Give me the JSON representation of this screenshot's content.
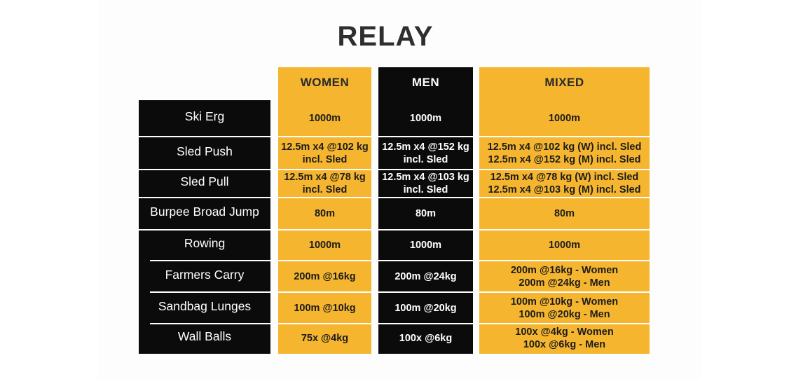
{
  "title": "RELAY",
  "headers": {
    "women": "WOMEN",
    "men": "MEN",
    "mixed": "MIXED"
  },
  "rows": [
    {
      "exercise": "Ski Erg",
      "women": [
        "1000m"
      ],
      "men": [
        "1000m"
      ],
      "mixed": [
        "1000m"
      ]
    },
    {
      "exercise": "Sled Push",
      "women": [
        "12.5m x4 @102 kg",
        "incl. Sled"
      ],
      "men": [
        "12.5m x4 @152 kg",
        "incl. Sled"
      ],
      "mixed": [
        "12.5m x4 @102 kg (W) incl. Sled",
        "12.5m x4 @152 kg (M) incl. Sled"
      ]
    },
    {
      "exercise": "Sled Pull",
      "women": [
        "12.5m x4 @78 kg",
        "incl. Sled"
      ],
      "men": [
        "12.5m x4 @103 kg",
        "incl. Sled"
      ],
      "mixed": [
        "12.5m x4 @78 kg (W) incl. Sled",
        "12.5m x4 @103 kg (M) incl. Sled"
      ]
    },
    {
      "exercise": "Burpee Broad Jump",
      "women": [
        "80m"
      ],
      "men": [
        "80m"
      ],
      "mixed": [
        "80m"
      ]
    },
    {
      "exercise": "Rowing",
      "women": [
        "1000m"
      ],
      "men": [
        "1000m"
      ],
      "mixed": [
        "1000m"
      ]
    },
    {
      "exercise": "Farmers Carry",
      "women": [
        "200m @16kg"
      ],
      "men": [
        "200m @24kg"
      ],
      "mixed": [
        "200m @16kg - Women",
        "200m @24kg - Men"
      ]
    },
    {
      "exercise": "Sandbag Lunges",
      "women": [
        "100m @10kg"
      ],
      "men": [
        "100m @20kg"
      ],
      "mixed": [
        "100m @10kg - Women",
        "100m @20kg - Men"
      ]
    },
    {
      "exercise": "Wall Balls",
      "women": [
        "75x @4kg"
      ],
      "men": [
        "100x @6kg"
      ],
      "mixed": [
        "100x @4kg - Women",
        "100x @6kg - Men"
      ]
    }
  ],
  "colors": {
    "yellow": "#f5b52f",
    "black": "#0b0b0b",
    "title": "#2e2e2e"
  }
}
